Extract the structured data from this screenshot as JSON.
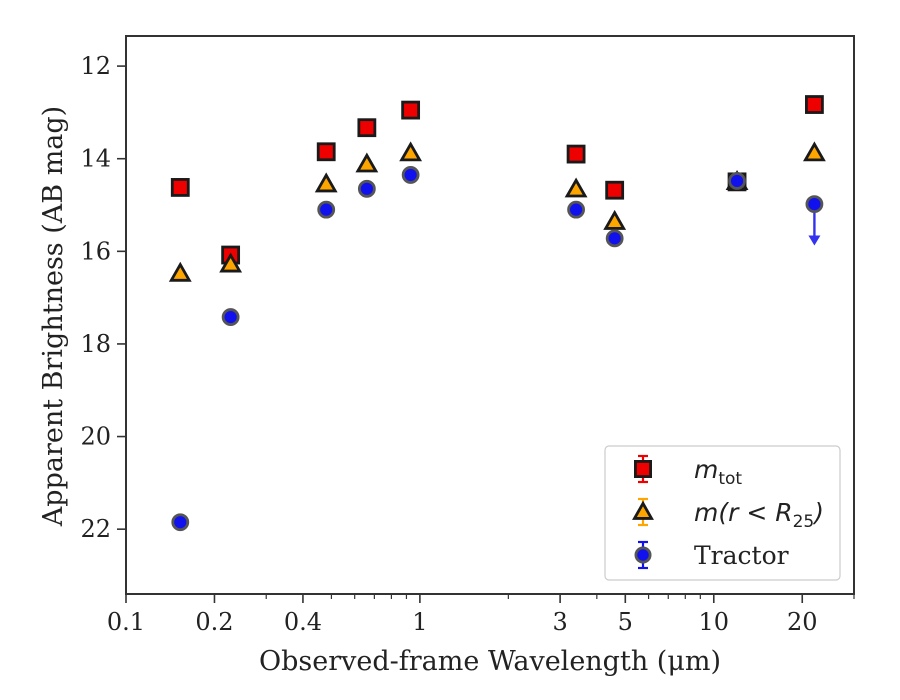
{
  "chart_data": {
    "type": "scatter",
    "title": "",
    "xlabel": "Observed-frame Wavelength (μm)",
    "ylabel": "Apparent Brightness (AB mag)",
    "x_scale": "log",
    "y_inverted": true,
    "xlim": [
      0.1,
      30
    ],
    "ylim": [
      23.4,
      11.35
    ],
    "grid": false,
    "legend_position": "lower-right",
    "x_ticks": [
      {
        "value": 0.1,
        "label": "0.1"
      },
      {
        "value": 0.2,
        "label": "0.2"
      },
      {
        "value": 0.4,
        "label": "0.4"
      },
      {
        "value": 1,
        "label": "1"
      },
      {
        "value": 3,
        "label": "3"
      },
      {
        "value": 5,
        "label": "5"
      },
      {
        "value": 10,
        "label": "10"
      },
      {
        "value": 20,
        "label": "20"
      }
    ],
    "y_ticks": [
      {
        "value": 12,
        "label": "12"
      },
      {
        "value": 14,
        "label": "14"
      },
      {
        "value": 16,
        "label": "16"
      },
      {
        "value": 18,
        "label": "18"
      },
      {
        "value": 20,
        "label": "20"
      },
      {
        "value": 22,
        "label": "22"
      }
    ],
    "series": [
      {
        "name": "m_tot",
        "legend_main": "m",
        "legend_sub": "tot",
        "legend_tail": "",
        "marker": "square",
        "color": "#ee0000",
        "edge": "#1a1a1a",
        "points": [
          {
            "x": 0.153,
            "y": 14.62
          },
          {
            "x": 0.227,
            "y": 16.08
          },
          {
            "x": 0.48,
            "y": 13.85
          },
          {
            "x": 0.66,
            "y": 13.33
          },
          {
            "x": 0.93,
            "y": 12.95
          },
          {
            "x": 3.4,
            "y": 13.9
          },
          {
            "x": 4.6,
            "y": 14.68
          },
          {
            "x": 12.0,
            "y": 14.5
          },
          {
            "x": 22.0,
            "y": 12.83
          }
        ]
      },
      {
        "name": "m(r<R25)",
        "legend_main": "m(r < R",
        "legend_sub": "25",
        "legend_tail": ")",
        "marker": "triangle",
        "color": "#ffa500",
        "edge": "#1a1a1a",
        "points": [
          {
            "x": 0.153,
            "y": 16.48
          },
          {
            "x": 0.227,
            "y": 16.28
          },
          {
            "x": 0.48,
            "y": 14.55
          },
          {
            "x": 0.66,
            "y": 14.12
          },
          {
            "x": 0.93,
            "y": 13.88
          },
          {
            "x": 3.4,
            "y": 14.66
          },
          {
            "x": 4.6,
            "y": 15.36
          },
          {
            "x": 12.0,
            "y": 14.5
          },
          {
            "x": 22.0,
            "y": 13.88
          }
        ]
      },
      {
        "name": "Tractor",
        "legend_main": "Tractor",
        "legend_sub": "",
        "legend_tail": "",
        "marker": "circle",
        "color": "#1111ee",
        "edge": "#555555",
        "points": [
          {
            "x": 0.153,
            "y": 21.85
          },
          {
            "x": 0.227,
            "y": 17.42
          },
          {
            "x": 0.48,
            "y": 15.1
          },
          {
            "x": 0.66,
            "y": 14.65
          },
          {
            "x": 0.93,
            "y": 14.35
          },
          {
            "x": 3.4,
            "y": 15.1
          },
          {
            "x": 4.6,
            "y": 15.72
          },
          {
            "x": 12.0,
            "y": 14.48
          },
          {
            "x": 22.0,
            "y": 14.98,
            "upper_limit": true
          }
        ]
      }
    ]
  }
}
